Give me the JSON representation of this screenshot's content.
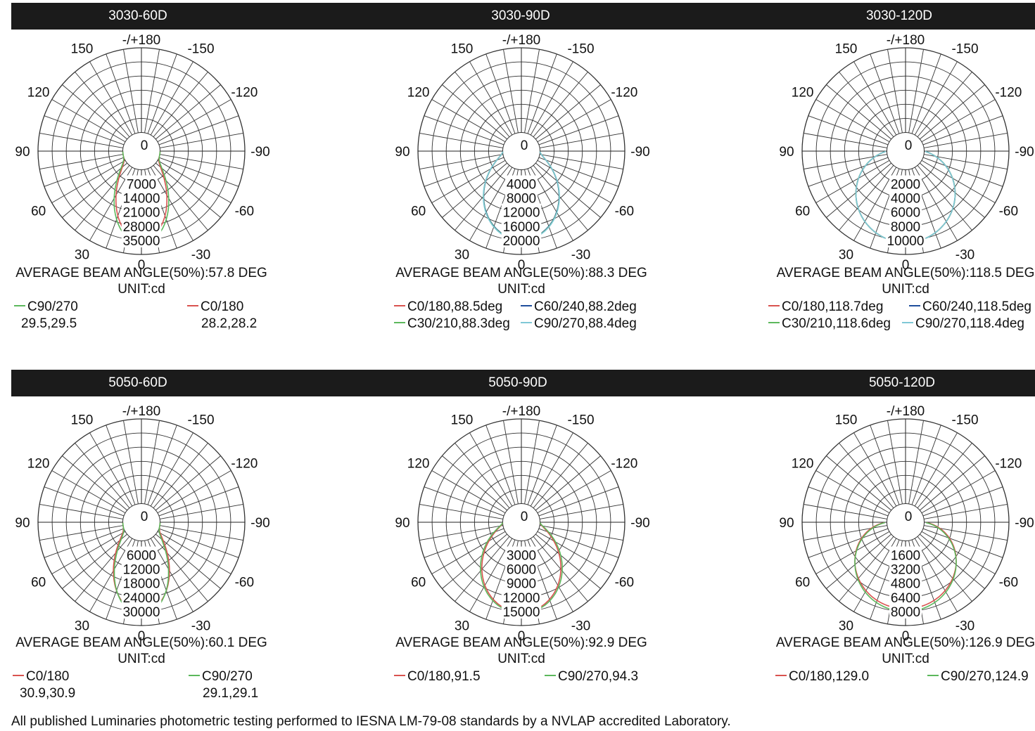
{
  "rows": [
    {
      "panels": [
        "3030-60D",
        "3030-90D",
        "3030-120D"
      ]
    },
    {
      "panels": [
        "5050-60D",
        "5050-90D",
        "5050-120D"
      ]
    }
  ],
  "common": {
    "top_label": "-/+180",
    "bottom_label": "0",
    "angle_labels": [
      "-150",
      "150",
      "-120",
      "120",
      "-90",
      "90",
      "-60",
      "60",
      "-30",
      "30"
    ],
    "unit": "UNIT:cd"
  },
  "chart_data": [
    {
      "type": "polar",
      "title": "3030-60D",
      "radial_ticks": [
        "0",
        "7000",
        "14000",
        "21000",
        "28000",
        "35000"
      ],
      "rmax": 42000,
      "beam_angle": "AVERAGE BEAM ANGLE(50%):57.8 DEG",
      "unit": "UNIT:cd",
      "legend_layout": "two-line",
      "legend": [
        {
          "label": "C90/270",
          "value": "29.5,29.5",
          "color": "#5cb85c"
        },
        {
          "label": "C0/180",
          "value": "28.2,28.2",
          "color": "#d9534f"
        }
      ],
      "series": [
        {
          "color": "#d9534f",
          "peak": 35000,
          "half_angle": 28.2
        },
        {
          "color": "#5cb85c",
          "peak": 36500,
          "half_angle": 29.5
        }
      ]
    },
    {
      "type": "polar",
      "title": "3030-90D",
      "radial_ticks": [
        "0",
        "4000",
        "8000",
        "12000",
        "16000",
        "20000"
      ],
      "rmax": 24000,
      "beam_angle": "AVERAGE BEAM ANGLE(50%):88.3 DEG",
      "unit": "UNIT:cd",
      "legend_layout": "grid",
      "legend": [
        {
          "label": "C0/180,88.5deg",
          "color": "#d9534f"
        },
        {
          "label": "C60/240,88.2deg",
          "color": "#1f4e9c"
        },
        {
          "label": "C30/210,88.3deg",
          "color": "#5cb85c"
        },
        {
          "label": "C90/270,88.4deg",
          "color": "#7fc8d6"
        }
      ],
      "series": [
        {
          "color": "#d9534f",
          "peak": 19800,
          "half_angle": 44.2
        },
        {
          "color": "#1f4e9c",
          "peak": 19800,
          "half_angle": 44.1
        },
        {
          "color": "#5cb85c",
          "peak": 19900,
          "half_angle": 44.2
        },
        {
          "color": "#7fc8d6",
          "peak": 20000,
          "half_angle": 44.2
        }
      ]
    },
    {
      "type": "polar",
      "title": "3030-120D",
      "radial_ticks": [
        "0",
        "2000",
        "4000",
        "6000",
        "8000",
        "10000"
      ],
      "rmax": 12000,
      "beam_angle": "AVERAGE BEAM ANGLE(50%):118.5 DEG",
      "unit": "UNIT:cd",
      "legend_layout": "grid",
      "legend": [
        {
          "label": "C0/180,118.7deg",
          "color": "#d9534f"
        },
        {
          "label": "C60/240,118.5deg",
          "color": "#1f4e9c"
        },
        {
          "label": "C30/210,118.6deg",
          "color": "#5cb85c"
        },
        {
          "label": "C90/270,118.4deg",
          "color": "#7fc8d6"
        }
      ],
      "series": [
        {
          "color": "#d9534f",
          "peak": 10300,
          "half_angle": 59.3
        },
        {
          "color": "#1f4e9c",
          "peak": 10300,
          "half_angle": 59.2
        },
        {
          "color": "#5cb85c",
          "peak": 10300,
          "half_angle": 59.3
        },
        {
          "color": "#7fc8d6",
          "peak": 10300,
          "half_angle": 59.2
        }
      ]
    },
    {
      "type": "polar",
      "title": "5050-60D",
      "radial_ticks": [
        "0",
        "6000",
        "12000",
        "18000",
        "24000",
        "30000"
      ],
      "rmax": 36000,
      "beam_angle": "AVERAGE BEAM ANGLE(50%):60.1 DEG",
      "unit": "UNIT:cd",
      "legend_layout": "two-line",
      "legend": [
        {
          "label": "C0/180",
          "value": "30.9,30.9",
          "color": "#d9534f"
        },
        {
          "label": "C90/270",
          "value": "29.1,29.1",
          "color": "#5cb85c"
        }
      ],
      "series": [
        {
          "color": "#d9534f",
          "peak": 30500,
          "half_angle": 30.9
        },
        {
          "color": "#5cb85c",
          "peak": 31500,
          "half_angle": 29.1
        }
      ]
    },
    {
      "type": "polar",
      "title": "5050-90D",
      "radial_ticks": [
        "0",
        "3000",
        "6000",
        "9000",
        "12000",
        "15000"
      ],
      "rmax": 18000,
      "beam_angle": "AVERAGE BEAM ANGLE(50%):92.9 DEG",
      "unit": "UNIT:cd",
      "legend_layout": "single",
      "legend": [
        {
          "label": "C0/180,91.5",
          "color": "#d9534f"
        },
        {
          "label": "C90/270,94.3",
          "color": "#5cb85c"
        }
      ],
      "series": [
        {
          "color": "#d9534f",
          "peak": 15200,
          "half_angle": 45.7
        },
        {
          "color": "#5cb85c",
          "peak": 15400,
          "half_angle": 47.1
        }
      ]
    },
    {
      "type": "polar",
      "title": "5050-120D",
      "radial_ticks": [
        "0",
        "1600",
        "3200",
        "4800",
        "6400",
        "8000"
      ],
      "rmax": 9600,
      "beam_angle": "AVERAGE BEAM ANGLE(50%):126.9 DEG",
      "unit": "UNIT:cd",
      "legend_layout": "single",
      "legend": [
        {
          "label": "C0/180,129.0",
          "color": "#d9534f"
        },
        {
          "label": "C90/270,124.9",
          "color": "#5cb85c"
        }
      ],
      "series": [
        {
          "color": "#d9534f",
          "peak": 7700,
          "half_angle": 64.5
        },
        {
          "color": "#5cb85c",
          "peak": 8000,
          "half_angle": 62.4
        }
      ]
    }
  ],
  "footer": "All published Luminaries photometric testing performed to IESNA LM-79-08 standards by a NVLAP accredited Laboratory."
}
